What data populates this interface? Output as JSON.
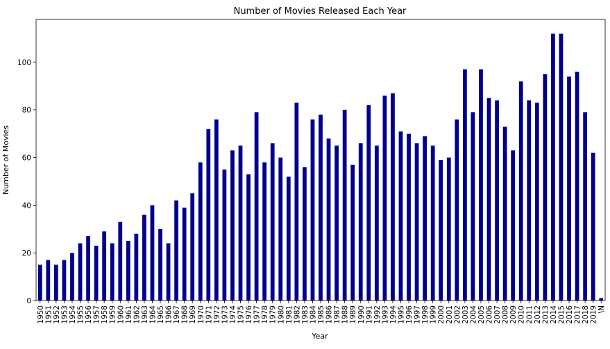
{
  "chart_data": {
    "type": "bar",
    "title": "Number of Movies Released Each Year",
    "xlabel": "Year",
    "ylabel": "Number of Movies",
    "ylim": [
      0,
      118
    ],
    "yticks": [
      0,
      20,
      40,
      60,
      80,
      100
    ],
    "grid": false,
    "bar_color": "#00008b",
    "categories": [
      "1950",
      "1951",
      "1952",
      "1953",
      "1954",
      "1955",
      "1956",
      "1957",
      "1958",
      "1959",
      "1960",
      "1961",
      "1962",
      "1963",
      "1964",
      "1965",
      "1966",
      "1967",
      "1968",
      "1969",
      "1970",
      "1971",
      "1972",
      "1973",
      "1974",
      "1975",
      "1976",
      "1977",
      "1978",
      "1979",
      "1980",
      "1981",
      "1982",
      "1983",
      "1984",
      "1985",
      "1986",
      "1987",
      "1988",
      "1989",
      "1990",
      "1991",
      "1992",
      "1993",
      "1994",
      "1995",
      "1996",
      "1997",
      "1998",
      "1999",
      "2000",
      "2001",
      "2002",
      "2003",
      "2004",
      "2005",
      "2006",
      "2007",
      "2008",
      "2009",
      "2010",
      "2011",
      "2012",
      "2013",
      "2014",
      "2015",
      "2016",
      "2017",
      "2018",
      "2019",
      "\\N"
    ],
    "values": [
      15,
      17,
      15,
      17,
      20,
      24,
      27,
      23,
      29,
      24,
      33,
      25,
      28,
      36,
      40,
      30,
      24,
      42,
      39,
      45,
      58,
      72,
      76,
      55,
      63,
      65,
      53,
      79,
      58,
      66,
      60,
      52,
      83,
      56,
      76,
      78,
      68,
      65,
      80,
      57,
      66,
      82,
      65,
      86,
      87,
      71,
      70,
      66,
      69,
      65,
      59,
      60,
      76,
      97,
      79,
      97,
      85,
      84,
      73,
      63,
      92,
      84,
      83,
      95,
      112,
      112,
      94,
      96,
      79,
      62,
      1
    ]
  }
}
